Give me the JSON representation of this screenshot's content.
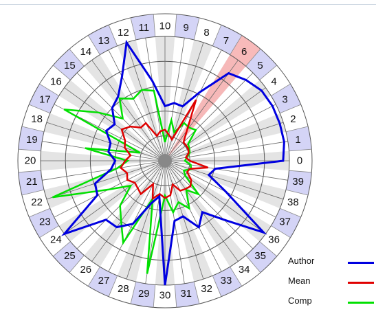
{
  "chart_data": {
    "type": "radar",
    "categories": [
      "0",
      "1",
      "2",
      "3",
      "4",
      "5",
      "6",
      "7",
      "8",
      "9",
      "10",
      "11",
      "12",
      "13",
      "14",
      "15",
      "16",
      "17",
      "18",
      "19",
      "20",
      "21",
      "22",
      "23",
      "24",
      "25",
      "26",
      "27",
      "28",
      "29",
      "30",
      "31",
      "32",
      "33",
      "34",
      "35",
      "36",
      "37",
      "38",
      "39"
    ],
    "highlight_category": "6",
    "rlim": [
      0,
      10
    ],
    "grid_rings": [
      2,
      4,
      6,
      8,
      10
    ],
    "legend_position": "bottom-right",
    "series": [
      {
        "name": "Author",
        "color": "#0000e0",
        "values": [
          9.5,
          9.7,
          9.7,
          9.7,
          9.6,
          9.2,
          8.7,
          6.2,
          4.6,
          4.7,
          4.4,
          6.5,
          10.0,
          7.6,
          6.4,
          6.0,
          5.0,
          5.3,
          4.6,
          4.6,
          4.0,
          4.4,
          5.9,
          6.1,
          10.0,
          6.7,
          6.6,
          5.7,
          3.6,
          2.9,
          10.0,
          4.9,
          4.7,
          6.0,
          5.1,
          6.7,
          9.8,
          5.5,
          3.7,
          4.1
        ]
      },
      {
        "name": "Mean",
        "color": "#e00000",
        "values": [
          2.0,
          1.7,
          2.0,
          2.1,
          2.1,
          2.1,
          3.0,
          5.5,
          1.8,
          2.1,
          2.5,
          2.4,
          2.1,
          3.4,
          3.3,
          3.9,
          4.3,
          3.6,
          3.4,
          2.8,
          3.2,
          3.6,
          3.2,
          3.4,
          3.0,
          3.1,
          3.3,
          2.1,
          3.2,
          2.7,
          3.0,
          2.8,
          2.0,
          2.7,
          2.8,
          2.9,
          2.6,
          2.0,
          2.1,
          3.5
        ]
      },
      {
        "name": "Comp",
        "color": "#00e000",
        "values": [
          1.6,
          1.8,
          2.1,
          2.2,
          2.3,
          3.5,
          3.3,
          3.4,
          2.4,
          3.3,
          1.5,
          5.7,
          6.0,
          5.6,
          6.2,
          4.8,
          6.6,
          9.1,
          2.1,
          6.5,
          3.0,
          3.9,
          9.5,
          5.1,
          3.4,
          5.1,
          6.0,
          7.4,
          3.2,
          9.2,
          2.8,
          4.2,
          3.5,
          4.3,
          2.9,
          3.8,
          2.0,
          1.7,
          2.2,
          2.1
        ]
      }
    ]
  }
}
